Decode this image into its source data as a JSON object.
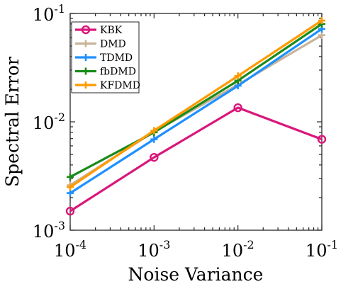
{
  "chart_data": {
    "type": "line",
    "xscale": "log",
    "yscale": "log",
    "xlabel": "Noise Variance",
    "ylabel": "Spectral Error",
    "xlim": [
      0.0001,
      0.1
    ],
    "ylim": [
      0.001,
      0.1
    ],
    "x": [
      0.0001,
      0.001,
      0.01,
      0.1
    ],
    "x_ticks": [
      {
        "value": 0.0001,
        "base": "10",
        "exp": "-4"
      },
      {
        "value": 0.001,
        "base": "10",
        "exp": "-3"
      },
      {
        "value": 0.01,
        "base": "10",
        "exp": "-2"
      },
      {
        "value": 0.1,
        "base": "10",
        "exp": "-1"
      }
    ],
    "y_ticks": [
      {
        "value": 0.001,
        "base": "10",
        "exp": "-3"
      },
      {
        "value": 0.01,
        "base": "10",
        "exp": "-2"
      },
      {
        "value": 0.1,
        "base": "10",
        "exp": "-1"
      }
    ],
    "grid": false,
    "legend_position": "top-left",
    "series": [
      {
        "name": "KBK",
        "color": "#d9177a",
        "marker": "circle",
        "values": [
          0.0015,
          0.0047,
          0.0135,
          0.0069
        ]
      },
      {
        "name": "DMD",
        "color": "#c8b49b",
        "marker": "plus",
        "values": [
          0.0026,
          0.0081,
          0.022,
          0.063
        ]
      },
      {
        "name": "TDMD",
        "color": "#1e90ff",
        "marker": "plus",
        "values": [
          0.0022,
          0.0069,
          0.0215,
          0.072
        ]
      },
      {
        "name": "fbDMD",
        "color": "#1a8a1a",
        "marker": "plus",
        "values": [
          0.0031,
          0.008,
          0.024,
          0.08
        ]
      },
      {
        "name": "KFDMD",
        "color": "#ff9a00",
        "marker": "plus",
        "values": [
          0.0025,
          0.0083,
          0.0265,
          0.086
        ]
      }
    ]
  }
}
